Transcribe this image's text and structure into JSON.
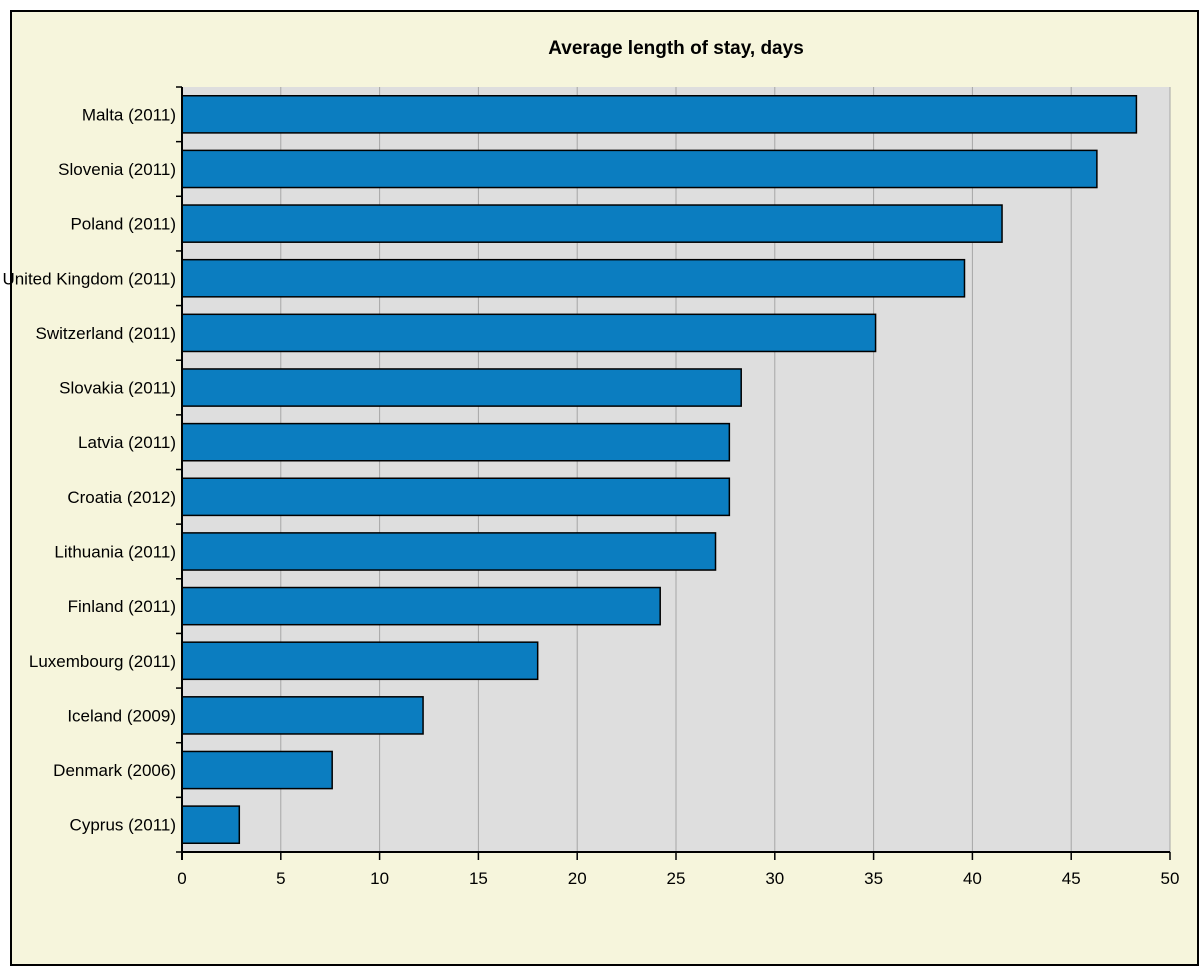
{
  "chart_data": {
    "type": "bar",
    "orientation": "horizontal",
    "title": "Average length of stay, days",
    "xlabel": "",
    "ylabel": "",
    "categories": [
      "Malta (2011)",
      "Slovenia (2011)",
      "Poland (2011)",
      "United Kingdom (2011)",
      "Switzerland (2011)",
      "Slovakia (2011)",
      "Latvia (2011)",
      "Croatia (2012)",
      "Lithuania (2011)",
      "Finland (2011)",
      "Luxembourg (2011)",
      "Iceland (2009)",
      "Denmark (2006)",
      "Cyprus (2011)"
    ],
    "values": [
      48.3,
      46.3,
      41.5,
      39.6,
      35.1,
      28.3,
      27.7,
      27.7,
      27.0,
      24.2,
      18.0,
      12.2,
      7.6,
      2.9
    ],
    "xlim": [
      0,
      50
    ],
    "xticks": [
      0,
      5,
      10,
      15,
      20,
      25,
      30,
      35,
      40,
      45,
      50
    ],
    "grid": "vertical",
    "legend": "none",
    "colors": {
      "bar": "#0b7dc0",
      "bar_outline": "#000000",
      "plot_background": "#dedede",
      "page_background": "#f6f5dc",
      "gridline": "#a6a6a6"
    }
  }
}
